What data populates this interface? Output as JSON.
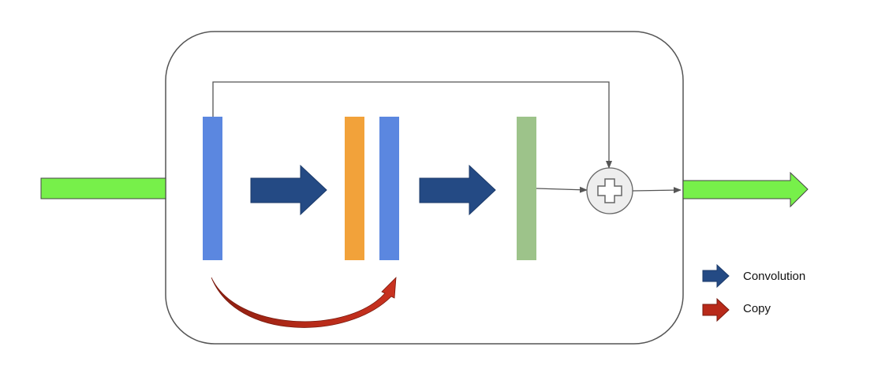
{
  "legend": {
    "convolution_label": "Convolution",
    "copy_label": "Copy"
  },
  "colors": {
    "io_arrow": "#77f04a",
    "feature_map_blue": "#5b87e0",
    "feature_map_orange": "#f2a23a",
    "feature_map_green": "#9dc38a",
    "convolution_arrow": "#244a84",
    "copy_arrow": "#b82a1a",
    "block_outline": "#555555",
    "connector_line": "#555555",
    "add_node_fill": "#eeeeee"
  },
  "icons": [
    "plus-icon"
  ]
}
